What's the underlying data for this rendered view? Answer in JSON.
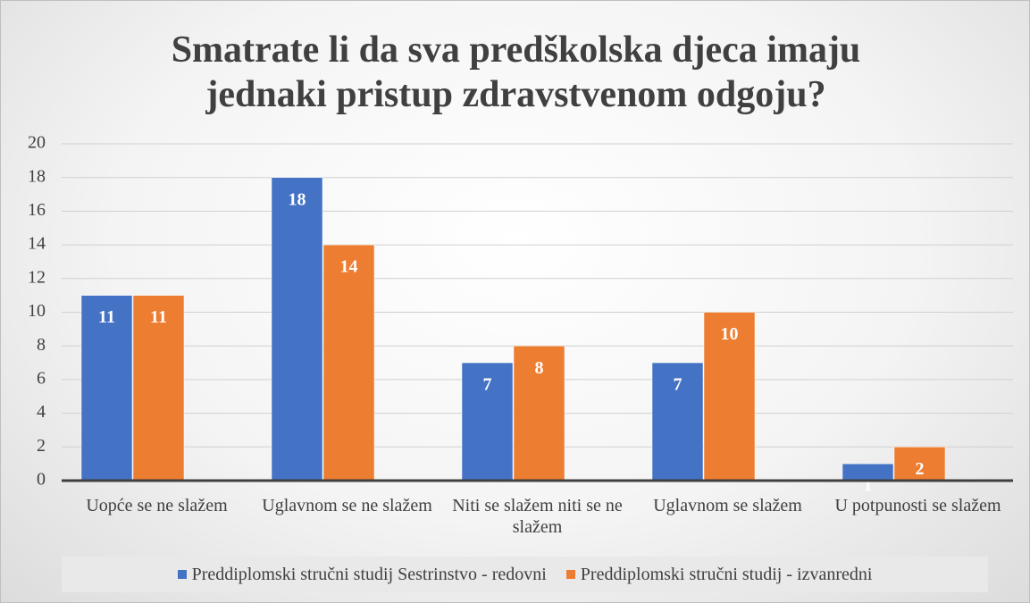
{
  "chart_data": {
    "type": "bar",
    "title": "Smatrate li da sva predškolska djeca imaju jednaki pristup zdravstvenom odgoju?",
    "categories": [
      "Uopće se ne slažem",
      "Uglavnom se ne slažem",
      "Niti se slažem niti se ne slažem",
      "Uglavnom se slažem",
      "U potpunosti se slažem"
    ],
    "series": [
      {
        "name": "Preddiplomski stručni studij Sestrinstvo - redovni",
        "color": "#4472c4",
        "values": [
          11,
          18,
          7,
          7,
          1
        ]
      },
      {
        "name": "Preddiplomski stručni studij - izvanredni",
        "color": "#ed7d31",
        "values": [
          11,
          14,
          8,
          10,
          2
        ]
      }
    ],
    "ylim": [
      0,
      20
    ],
    "yticks": [
      0,
      2,
      4,
      6,
      8,
      10,
      12,
      14,
      16,
      18,
      20
    ],
    "grid": true
  }
}
